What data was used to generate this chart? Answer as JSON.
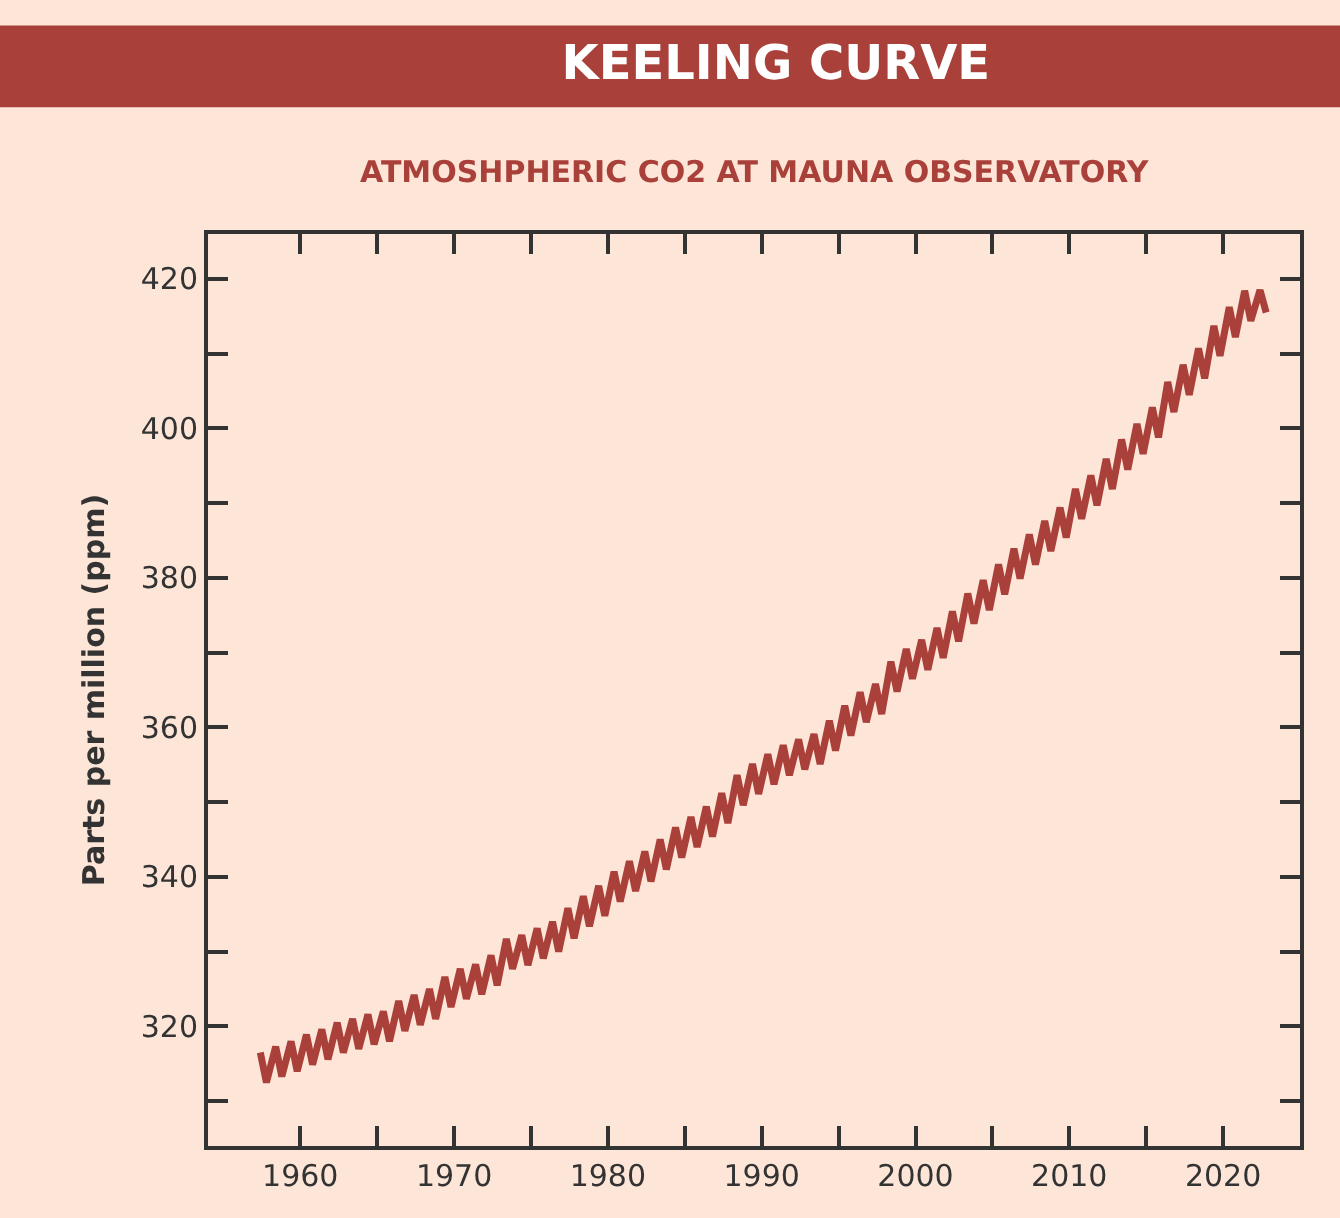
{
  "chart_data": {
    "type": "line",
    "title": "KEELING CURVE",
    "subtitle": "ATMOSHPHERIC CO2 AT MAUNA OBSERVATORY",
    "ylabel": "Parts per million (ppm)",
    "xlim": [
      1954,
      2025
    ],
    "ylim": [
      304,
      426
    ],
    "xticks": [
      1960,
      {
        "value": 1965,
        "label": null
      },
      1970,
      {
        "value": 1975,
        "label": null
      },
      1980,
      {
        "value": 1985,
        "label": null
      },
      1990,
      {
        "value": 1995,
        "label": null
      },
      2000,
      {
        "value": 2005,
        "label": null
      },
      2010,
      {
        "value": 2015,
        "label": null
      },
      2020
    ],
    "yticks": [
      {
        "value": 310,
        "label": null
      },
      320,
      {
        "value": 330,
        "label": null
      },
      340,
      {
        "value": 350,
        "label": null
      },
      360,
      {
        "value": 370,
        "label": null
      },
      380,
      {
        "value": 390,
        "label": null
      },
      400,
      {
        "value": 410,
        "label": null
      },
      420
    ],
    "series": [
      {
        "color": "#aa403a",
        "x": [
          1957.4,
          1957.8,
          1958.4,
          1958.8,
          1959.4,
          1959.8,
          1960.4,
          1960.8,
          1961.4,
          1961.8,
          1962.4,
          1962.8,
          1963.4,
          1963.8,
          1964.4,
          1964.8,
          1965.4,
          1965.8,
          1966.4,
          1966.8,
          1967.4,
          1967.8,
          1968.4,
          1968.8,
          1969.4,
          1969.8,
          1970.4,
          1970.8,
          1971.4,
          1971.8,
          1972.4,
          1972.8,
          1973.4,
          1973.8,
          1974.4,
          1974.8,
          1975.4,
          1975.8,
          1976.4,
          1976.8,
          1977.4,
          1977.8,
          1978.4,
          1978.8,
          1979.4,
          1979.8,
          1980.4,
          1980.8,
          1981.4,
          1981.8,
          1982.4,
          1982.8,
          1983.4,
          1983.8,
          1984.4,
          1984.8,
          1985.4,
          1985.8,
          1986.4,
          1986.8,
          1987.4,
          1987.8,
          1988.4,
          1988.8,
          1989.4,
          1989.8,
          1990.4,
          1990.8,
          1991.4,
          1991.8,
          1992.4,
          1992.8,
          1993.4,
          1993.8,
          1994.4,
          1994.8,
          1995.4,
          1995.8,
          1996.4,
          1996.8,
          1997.4,
          1997.8,
          1998.4,
          1998.8,
          1999.4,
          1999.8,
          2000.4,
          2000.8,
          2001.4,
          2001.8,
          2002.4,
          2002.8,
          2003.4,
          2003.8,
          2004.4,
          2004.8,
          2005.4,
          2005.8,
          2006.4,
          2006.8,
          2007.4,
          2007.8,
          2008.4,
          2008.8,
          2009.4,
          2009.8,
          2010.4,
          2010.8,
          2011.4,
          2011.8,
          2012.4,
          2012.8,
          2013.4,
          2013.8,
          2014.4,
          2014.8,
          2015.4,
          2015.8,
          2016.4,
          2016.8,
          2017.4,
          2017.8,
          2018.4,
          2018.8,
          2019.4,
          2019.8,
          2020.4,
          2020.8,
          2021.4,
          2021.8,
          2022.4,
          2022.8
        ],
        "values": [
          316.5,
          312.5,
          317.3,
          313.3,
          318.0,
          314.0,
          318.9,
          314.9,
          319.6,
          315.6,
          320.5,
          316.5,
          321.0,
          317.0,
          321.6,
          317.6,
          322.0,
          318.0,
          323.4,
          319.4,
          324.2,
          320.2,
          325.0,
          321.0,
          326.6,
          322.6,
          327.7,
          323.7,
          328.3,
          324.3,
          329.5,
          325.5,
          331.7,
          327.7,
          332.2,
          328.2,
          333.1,
          329.1,
          334.0,
          330.0,
          335.8,
          331.8,
          337.4,
          333.4,
          338.8,
          334.8,
          340.7,
          336.7,
          342.1,
          338.1,
          343.4,
          339.4,
          345.0,
          341.0,
          346.6,
          342.6,
          348.0,
          344.0,
          349.4,
          345.4,
          351.2,
          347.2,
          353.6,
          349.6,
          355.1,
          351.1,
          356.4,
          352.4,
          357.6,
          353.6,
          358.4,
          354.4,
          359.1,
          355.1,
          360.9,
          356.9,
          362.9,
          358.9,
          364.7,
          360.7,
          365.8,
          361.8,
          368.8,
          364.8,
          370.5,
          366.5,
          371.7,
          367.7,
          373.3,
          369.3,
          375.5,
          371.5,
          377.9,
          373.9,
          379.7,
          375.7,
          381.8,
          377.8,
          383.9,
          379.9,
          385.8,
          381.8,
          387.6,
          383.6,
          389.4,
          385.4,
          391.9,
          387.9,
          393.7,
          389.7,
          395.9,
          391.9,
          398.5,
          394.5,
          400.6,
          396.6,
          402.8,
          398.8,
          406.2,
          402.2,
          408.5,
          404.5,
          410.7,
          406.7,
          413.7,
          409.7,
          416.2,
          412.2,
          418.4,
          414.4,
          418.5,
          415.5
        ]
      }
    ]
  }
}
